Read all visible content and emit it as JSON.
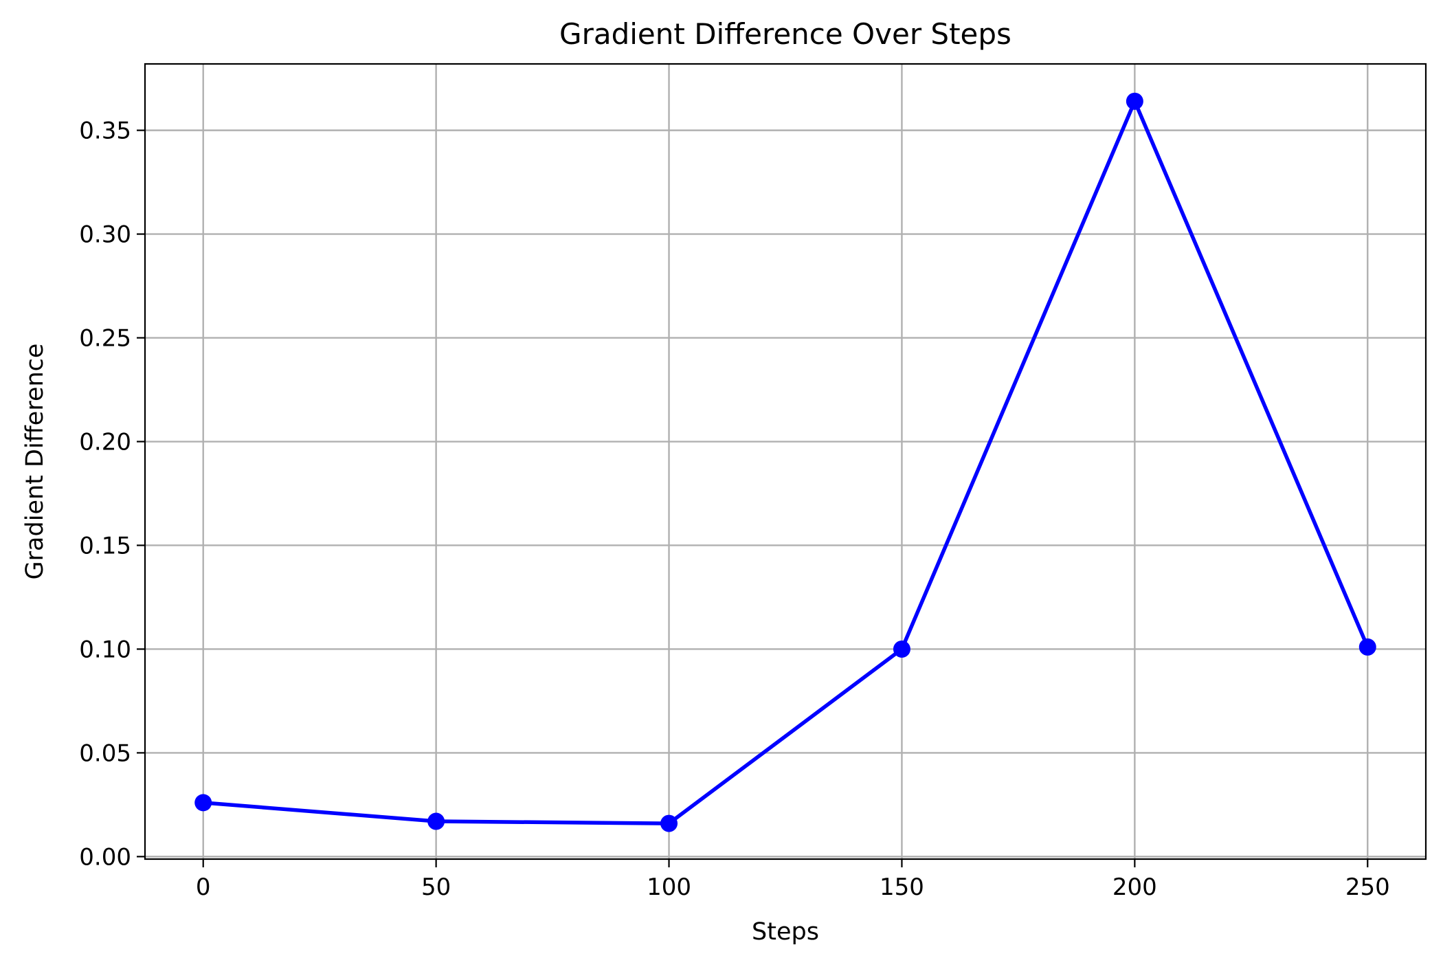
{
  "chart_data": {
    "type": "line",
    "title": "Gradient Difference Over Steps",
    "xlabel": "Steps",
    "ylabel": "Gradient Difference",
    "x": [
      0,
      50,
      100,
      150,
      200,
      250
    ],
    "series": [
      {
        "values": [
          0.026,
          0.017,
          0.016,
          0.1,
          0.364,
          0.101
        ],
        "color": "#0000ff",
        "marker": "circle"
      }
    ],
    "xlim": [
      -12.5,
      262.5
    ],
    "ylim": [
      -0.0012,
      0.382
    ],
    "xticks": [
      0,
      50,
      100,
      150,
      200,
      250
    ],
    "xtick_labels": [
      "0",
      "50",
      "100",
      "150",
      "200",
      "250"
    ],
    "yticks": [
      0.0,
      0.05,
      0.1,
      0.15,
      0.2,
      0.25,
      0.3,
      0.35
    ],
    "ytick_labels": [
      "0.00",
      "0.05",
      "0.10",
      "0.15",
      "0.20",
      "0.25",
      "0.30",
      "0.35"
    ],
    "grid": true,
    "legend": "none"
  }
}
